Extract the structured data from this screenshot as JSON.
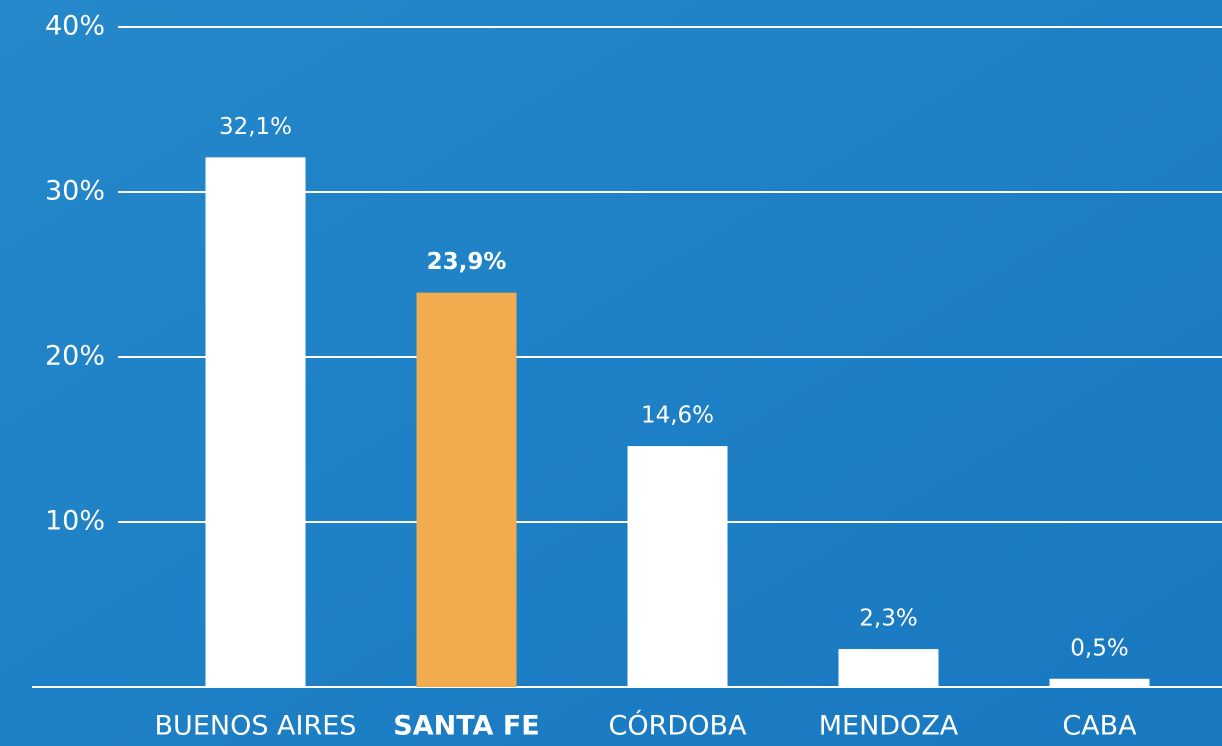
{
  "chart_data": {
    "type": "bar",
    "categories": [
      "BUENOS AIRES",
      "SANTA FE",
      "CÓRDOBA",
      "MENDOZA",
      "CABA"
    ],
    "values": [
      32.1,
      23.9,
      14.6,
      2.3,
      0.5
    ],
    "value_labels": [
      "32,1%",
      "23,9%",
      "14,6%",
      "2,3%",
      "0,5%"
    ],
    "colors": [
      "#ffffff",
      "#f2ac4e",
      "#ffffff",
      "#ffffff",
      "#ffffff"
    ],
    "ylim": [
      0,
      40
    ],
    "yticks": [
      {
        "value": 10,
        "label": "10%"
      },
      {
        "value": 20,
        "label": "20%"
      },
      {
        "value": 30,
        "label": "30%"
      },
      {
        "value": 40,
        "label": "40%"
      }
    ],
    "grid": true
  }
}
